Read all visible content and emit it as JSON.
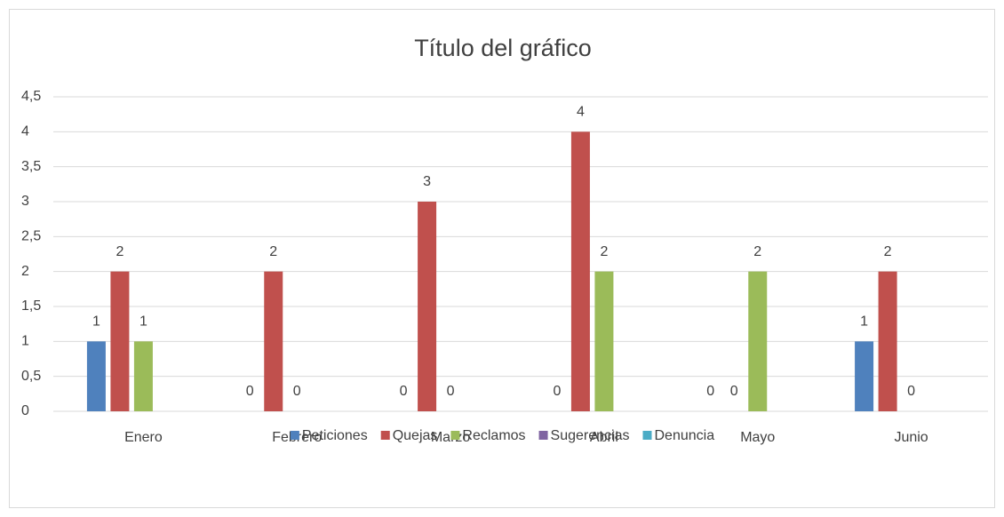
{
  "chart_data": {
    "type": "bar",
    "title": "Título del gráfico",
    "categories": [
      "Enero",
      "Febrero",
      "Marzo",
      "Abril",
      "Mayo",
      "Junio"
    ],
    "series": [
      {
        "name": "Peticiones",
        "color": "#4f81bd",
        "values": [
          1,
          0,
          0,
          0,
          0,
          1
        ]
      },
      {
        "name": "Quejas",
        "color": "#c0504d",
        "values": [
          2,
          2,
          3,
          4,
          0,
          2
        ]
      },
      {
        "name": "Reclamos",
        "color": "#9bbb59",
        "values": [
          1,
          0,
          0,
          2,
          2,
          0
        ]
      },
      {
        "name": "Sugerencias",
        "color": "#8064a2",
        "values": [
          null,
          null,
          null,
          null,
          null,
          null
        ]
      },
      {
        "name": "Denuncia",
        "color": "#4bacc6",
        "values": [
          null,
          null,
          null,
          null,
          null,
          null
        ]
      }
    ],
    "ylim": [
      0,
      4.5
    ],
    "yticks": [
      0,
      {
        "value": 0.5,
        "label": "0,5"
      },
      1,
      {
        "value": 1.5,
        "label": "1,5"
      },
      2,
      {
        "value": 2.5,
        "label": "2,5"
      },
      3,
      {
        "value": 3.5,
        "label": "3,5"
      },
      4,
      {
        "value": 4.5,
        "label": "4,5"
      }
    ],
    "grid": true,
    "legend": "bottom"
  }
}
